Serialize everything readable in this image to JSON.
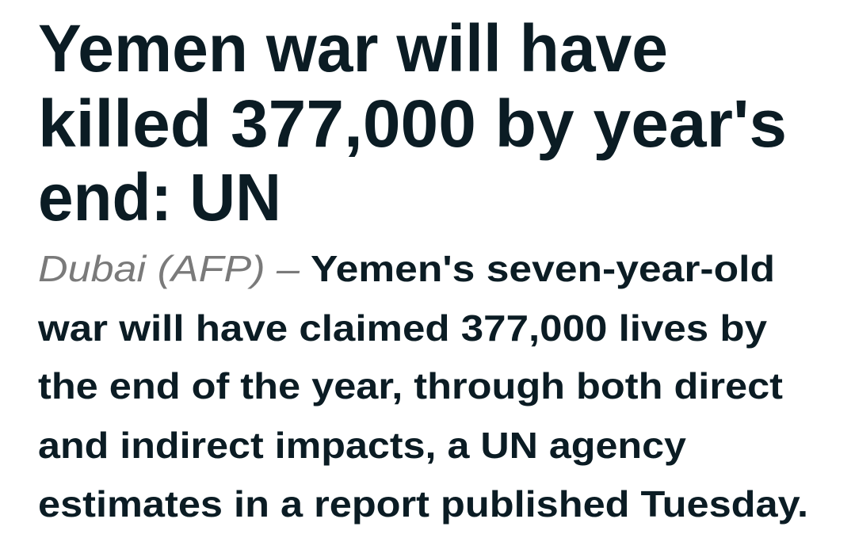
{
  "headline": [
    "Yemen war will have",
    "killed 377,000 by year's",
    "end: UN"
  ],
  "dateline": "Dubai (AFP) –",
  "lede": [
    "Yemen's seven-year-old",
    "war will have claimed 377,000 lives by",
    "the end of the year, through both direct",
    "and indirect impacts, a UN agency",
    "estimates in a report published Tuesday."
  ]
}
